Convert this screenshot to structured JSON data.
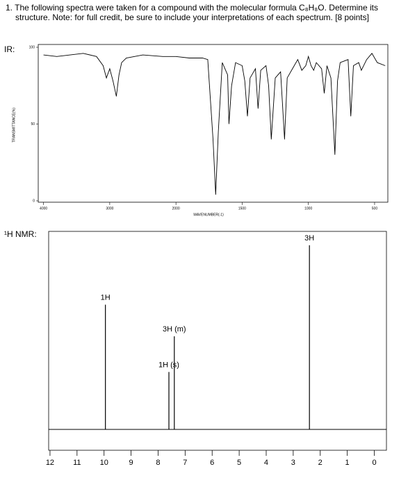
{
  "question": {
    "text": "1. The following spectra were taken for a compound with the molecular formula C₈H₈O. Determine its structure. Note: for full credit, be sure to include your interpretations of each spectrum. [8 points]"
  },
  "ir": {
    "label": "IR:",
    "type": "line",
    "ylabel": "TRANSMITTANCE(%)",
    "xlabel": "WAVENUMBER(-1)",
    "xlim": [
      4080,
      400
    ],
    "xscale_break": 2000,
    "xscale_factor": 2,
    "xticks": [
      4000,
      3000,
      2000,
      1500,
      1000,
      500
    ],
    "ylim": [
      0,
      100
    ],
    "yticks": [
      100,
      50,
      0
    ],
    "color": "#000000",
    "x": [
      4000,
      3800,
      3600,
      3400,
      3200,
      3100,
      3050,
      3000,
      2950,
      2900,
      2860,
      2820,
      2750,
      2500,
      2200,
      2000,
      1900,
      1800,
      1760,
      1720,
      1700,
      1680,
      1650,
      1610,
      1600,
      1580,
      1550,
      1500,
      1480,
      1460,
      1440,
      1400,
      1380,
      1360,
      1320,
      1300,
      1280,
      1250,
      1210,
      1180,
      1160,
      1120,
      1080,
      1050,
      1020,
      1000,
      980,
      960,
      940,
      900,
      880,
      860,
      830,
      800,
      780,
      760,
      700,
      680,
      660,
      620,
      600,
      560,
      520,
      480,
      420
    ],
    "values": [
      95,
      94,
      95,
      96,
      94,
      88,
      80,
      86,
      78,
      68,
      82,
      90,
      93,
      95,
      94,
      94,
      93,
      93,
      92,
      40,
      4,
      45,
      90,
      82,
      50,
      75,
      90,
      88,
      78,
      55,
      80,
      86,
      60,
      85,
      88,
      75,
      40,
      80,
      84,
      40,
      80,
      86,
      92,
      85,
      88,
      94,
      88,
      85,
      90,
      86,
      70,
      88,
      80,
      30,
      78,
      90,
      92,
      55,
      88,
      90,
      85,
      92,
      96,
      90,
      88
    ]
  },
  "nmr": {
    "label": "¹H NMR:",
    "type": "line",
    "xlim": [
      12.05,
      -0.45
    ],
    "xticks": [
      12,
      11,
      10,
      9,
      8,
      7,
      6,
      5,
      4,
      3,
      2,
      1,
      0
    ],
    "ylim": [
      0,
      100
    ],
    "color": "#000000",
    "x": [
      9.95,
      7.6,
      7.4,
      2.4
    ],
    "values": [
      63,
      29,
      47,
      93
    ],
    "annotations": [
      "1H",
      "1H (s)",
      "3H (m)",
      "3H"
    ]
  }
}
